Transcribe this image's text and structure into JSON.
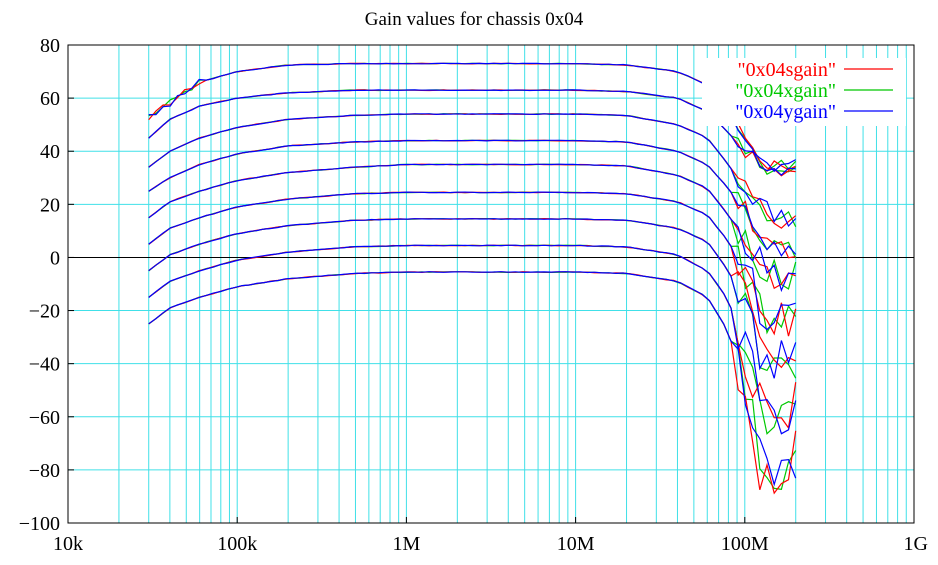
{
  "chart_data": {
    "type": "line",
    "title": "Gain values for chassis 0x04",
    "xlabel": "",
    "ylabel": "",
    "x_scale": "log",
    "xlim": [
      10000,
      1000000000
    ],
    "ylim": [
      -100,
      80
    ],
    "grid": true,
    "legend_position": "top-right",
    "x_ticks": [
      {
        "value": 10000,
        "label": "10k"
      },
      {
        "value": 100000,
        "label": "100k"
      },
      {
        "value": 1000000,
        "label": "1M"
      },
      {
        "value": 10000000,
        "label": "10M"
      },
      {
        "value": 100000000,
        "label": "100M"
      },
      {
        "value": 1000000000,
        "label": "1G"
      }
    ],
    "y_ticks": [
      80,
      60,
      40,
      20,
      0,
      -20,
      -40,
      -60,
      -80,
      -100
    ],
    "y_tick_labels": [
      "80",
      "60",
      "40",
      "20",
      "0",
      "−20",
      "−40",
      "−60",
      "−80",
      "−100"
    ],
    "frequencies": [
      30000,
      40000,
      60000,
      100000,
      200000,
      500000,
      1000000,
      5000000,
      10000000,
      20000000,
      40000000,
      60000000,
      80000000,
      100000000,
      130000000,
      160000000,
      200000000
    ],
    "series": [
      {
        "name": "\"0x04sgain\"",
        "color": "#ff0000"
      },
      {
        "name": "\"0x04xgain\"",
        "color": "#00c800"
      },
      {
        "name": "\"0x04ygain\"",
        "color": "#0000ff"
      }
    ],
    "curves": [
      [
        53,
        58,
        66,
        70,
        72.5,
        73,
        73,
        73,
        73,
        72.5,
        70,
        65,
        55,
        45,
        33,
        32,
        33
      ],
      [
        45,
        52,
        57,
        60,
        62,
        63,
        63,
        63,
        63,
        62.5,
        60,
        55,
        47,
        40,
        34,
        34,
        35
      ],
      [
        34,
        40,
        45,
        49,
        52,
        53.5,
        54,
        54,
        54,
        53.5,
        50,
        45,
        35,
        26,
        18,
        14,
        14
      ],
      [
        25,
        30,
        35,
        39,
        42,
        43.5,
        44,
        44,
        44,
        43.5,
        40,
        35,
        26,
        17,
        8,
        4,
        4
      ],
      [
        15,
        21,
        25,
        29,
        32,
        34,
        35,
        35,
        35,
        34.5,
        31,
        26,
        16,
        6,
        -4,
        -6,
        -5
      ],
      [
        5,
        11,
        15,
        19,
        22,
        24,
        24.5,
        24.5,
        24.5,
        24,
        21,
        16,
        6,
        -5,
        -22,
        -25,
        -24
      ],
      [
        -5,
        1,
        5,
        9,
        12,
        14,
        14.5,
        14.5,
        14.5,
        14,
        11,
        6,
        -5,
        -18,
        -38,
        -40,
        -38
      ],
      [
        -15,
        -9,
        -5,
        -1,
        2,
        4,
        4.5,
        4.5,
        4.5,
        4,
        1,
        -5,
        -16,
        -35,
        -60,
        -58,
        -55
      ],
      [
        -25,
        -19,
        -15,
        -11,
        -8,
        -6,
        -5.5,
        -5.5,
        -5.5,
        -6,
        -9,
        -15,
        -28,
        -50,
        -85,
        -80,
        -72
      ]
    ]
  }
}
